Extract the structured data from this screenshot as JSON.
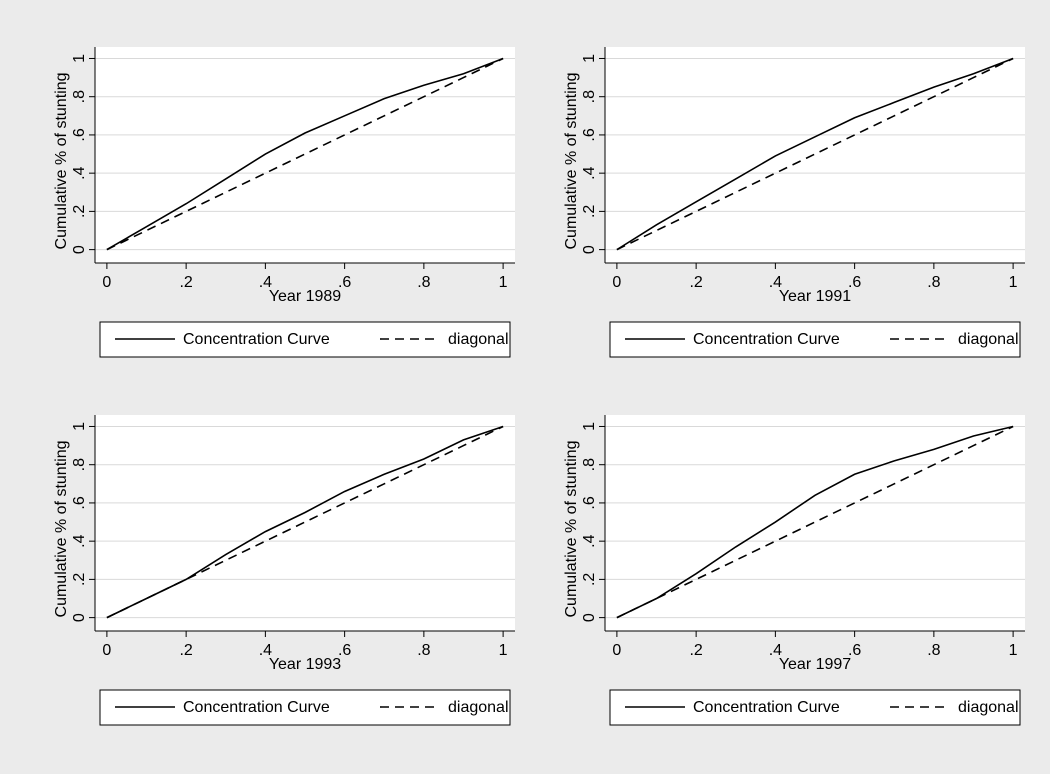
{
  "chart_data": [
    {
      "type": "line",
      "x_label": "Year 1989",
      "y_label": "Cumulative % of stunting",
      "x": [
        0,
        0.1,
        0.2,
        0.3,
        0.4,
        0.5,
        0.6,
        0.7,
        0.8,
        0.9,
        1
      ],
      "series": [
        {
          "name": "Concentration Curve",
          "color": "#000000",
          "style": "solid",
          "values": [
            0,
            0.12,
            0.24,
            0.37,
            0.5,
            0.61,
            0.7,
            0.79,
            0.86,
            0.92,
            1
          ]
        },
        {
          "name": "diagonal",
          "color": "#000000",
          "style": "dashed",
          "values": [
            0,
            0.1,
            0.2,
            0.3,
            0.4,
            0.5,
            0.6,
            0.7,
            0.8,
            0.9,
            1
          ]
        }
      ],
      "xlim": [
        -0.03,
        1.03
      ],
      "ylim": [
        -0.07,
        1.06
      ],
      "xticks": [
        0,
        {
          "value": 0.2,
          "label": ".2"
        },
        {
          "value": 0.4,
          "label": ".4"
        },
        {
          "value": 0.6,
          "label": ".6"
        },
        {
          "value": 0.8,
          "label": ".8"
        },
        1
      ],
      "yticks": [
        0,
        {
          "value": 0.2,
          "label": ".2"
        },
        {
          "value": 0.4,
          "label": ".4"
        },
        {
          "value": 0.6,
          "label": ".6"
        },
        {
          "value": 0.8,
          "label": ".8"
        },
        1
      ],
      "grid": true
    },
    {
      "type": "line",
      "x_label": "Year 1991",
      "y_label": "Cumulative % of stunting",
      "x": [
        0,
        0.1,
        0.2,
        0.3,
        0.4,
        0.5,
        0.6,
        0.7,
        0.8,
        0.9,
        1
      ],
      "series": [
        {
          "name": "Concentration Curve",
          "color": "#000000",
          "style": "solid",
          "values": [
            0,
            0.13,
            0.25,
            0.37,
            0.49,
            0.59,
            0.69,
            0.77,
            0.85,
            0.92,
            1
          ]
        },
        {
          "name": "diagonal",
          "color": "#000000",
          "style": "dashed",
          "values": [
            0,
            0.1,
            0.2,
            0.3,
            0.4,
            0.5,
            0.6,
            0.7,
            0.8,
            0.9,
            1
          ]
        }
      ],
      "xlim": [
        -0.03,
        1.03
      ],
      "ylim": [
        -0.07,
        1.06
      ],
      "xticks": [
        0,
        {
          "value": 0.2,
          "label": ".2"
        },
        {
          "value": 0.4,
          "label": ".4"
        },
        {
          "value": 0.6,
          "label": ".6"
        },
        {
          "value": 0.8,
          "label": ".8"
        },
        1
      ],
      "yticks": [
        0,
        {
          "value": 0.2,
          "label": ".2"
        },
        {
          "value": 0.4,
          "label": ".4"
        },
        {
          "value": 0.6,
          "label": ".6"
        },
        {
          "value": 0.8,
          "label": ".8"
        },
        1
      ],
      "grid": true
    },
    {
      "type": "line",
      "x_label": "Year 1993",
      "y_label": "Cumulative % of stunting",
      "x": [
        0,
        0.1,
        0.2,
        0.3,
        0.4,
        0.5,
        0.6,
        0.7,
        0.8,
        0.9,
        1
      ],
      "series": [
        {
          "name": "Concentration Curve",
          "color": "#000000",
          "style": "solid",
          "values": [
            0,
            0.1,
            0.2,
            0.33,
            0.45,
            0.55,
            0.66,
            0.75,
            0.83,
            0.93,
            1
          ]
        },
        {
          "name": "diagonal",
          "color": "#000000",
          "style": "dashed",
          "values": [
            0,
            0.1,
            0.2,
            0.3,
            0.4,
            0.5,
            0.6,
            0.7,
            0.8,
            0.9,
            1
          ]
        }
      ],
      "xlim": [
        -0.03,
        1.03
      ],
      "ylim": [
        -0.07,
        1.06
      ],
      "xticks": [
        0,
        {
          "value": 0.2,
          "label": ".2"
        },
        {
          "value": 0.4,
          "label": ".4"
        },
        {
          "value": 0.6,
          "label": ".6"
        },
        {
          "value": 0.8,
          "label": ".8"
        },
        1
      ],
      "yticks": [
        0,
        {
          "value": 0.2,
          "label": ".2"
        },
        {
          "value": 0.4,
          "label": ".4"
        },
        {
          "value": 0.6,
          "label": ".6"
        },
        {
          "value": 0.8,
          "label": ".8"
        },
        1
      ],
      "grid": true
    },
    {
      "type": "line",
      "x_label": "Year 1997",
      "y_label": "Cumulative % of stunting",
      "x": [
        0,
        0.1,
        0.2,
        0.3,
        0.4,
        0.5,
        0.6,
        0.7,
        0.8,
        0.9,
        1
      ],
      "series": [
        {
          "name": "Concentration Curve",
          "color": "#000000",
          "style": "solid",
          "values": [
            0,
            0.1,
            0.23,
            0.37,
            0.5,
            0.64,
            0.75,
            0.82,
            0.88,
            0.95,
            1
          ]
        },
        {
          "name": "diagonal",
          "color": "#000000",
          "style": "dashed",
          "values": [
            0,
            0.1,
            0.2,
            0.3,
            0.4,
            0.5,
            0.6,
            0.7,
            0.8,
            0.9,
            1
          ]
        }
      ],
      "xlim": [
        -0.03,
        1.03
      ],
      "ylim": [
        -0.07,
        1.06
      ],
      "xticks": [
        0,
        {
          "value": 0.2,
          "label": ".2"
        },
        {
          "value": 0.4,
          "label": ".4"
        },
        {
          "value": 0.6,
          "label": ".6"
        },
        {
          "value": 0.8,
          "label": ".8"
        },
        1
      ],
      "yticks": [
        0,
        {
          "value": 0.2,
          "label": ".2"
        },
        {
          "value": 0.4,
          "label": ".4"
        },
        {
          "value": 0.6,
          "label": ".6"
        },
        {
          "value": 0.8,
          "label": ".8"
        },
        1
      ],
      "grid": true
    }
  ]
}
